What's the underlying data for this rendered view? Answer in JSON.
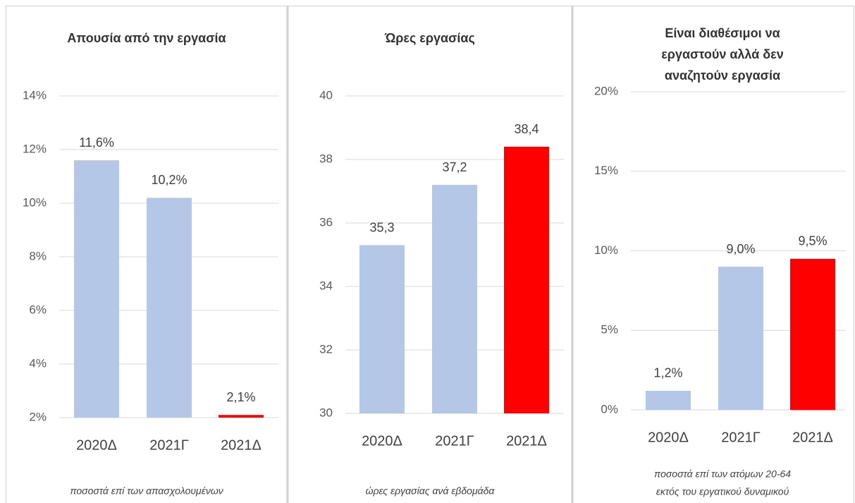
{
  "chart_data": [
    {
      "type": "bar",
      "title": "Απουσία από την εργασία",
      "categories": [
        "2020Δ",
        "2021Γ",
        "2021Δ"
      ],
      "values": [
        11.6,
        10.2,
        2.1
      ],
      "value_labels": [
        "11,6%",
        "10,2%",
        "2,1%"
      ],
      "colors": [
        "#b4c7e7",
        "#b4c7e7",
        "#ff0000"
      ],
      "ylim": [
        2,
        14
      ],
      "yticks": [
        {
          "value": 2,
          "label": "2%"
        },
        {
          "value": 4,
          "label": "4%"
        },
        {
          "value": 6,
          "label": "6%"
        },
        {
          "value": 8,
          "label": "8%"
        },
        {
          "value": 10,
          "label": "10%"
        },
        {
          "value": 12,
          "label": "12%"
        },
        {
          "value": 14,
          "label": "14%"
        }
      ],
      "grid": true,
      "note": "ποσοστά επί των  απασχολουμένων"
    },
    {
      "type": "bar",
      "title": "Ώρες εργασίας",
      "categories": [
        "2020Δ",
        "2021Γ",
        "2021Δ"
      ],
      "values": [
        35.3,
        37.2,
        38.4
      ],
      "value_labels": [
        "35,3",
        "37,2",
        "38,4"
      ],
      "colors": [
        "#b4c7e7",
        "#b4c7e7",
        "#ff0000"
      ],
      "ylim": [
        30,
        40
      ],
      "yticks": [
        30,
        32,
        34,
        36,
        38,
        40
      ],
      "grid": true,
      "note": "ώρες εργασίας ανά εβδομάδα"
    },
    {
      "type": "bar",
      "title": [
        "Είναι διαθέσιμοι να",
        "εργαστούν αλλά δεν",
        "αναζητούν εργασία"
      ],
      "categories": [
        "2020Δ",
        "2021Γ",
        "2021Δ"
      ],
      "values": [
        1.2,
        9.0,
        9.5
      ],
      "value_labels": [
        "1,2%",
        "9,0%",
        "9,5%"
      ],
      "colors": [
        "#b4c7e7",
        "#b4c7e7",
        "#ff0000"
      ],
      "ylim": [
        0,
        20
      ],
      "yticks": [
        {
          "value": 0,
          "label": "0%"
        },
        {
          "value": 5,
          "label": "5%"
        },
        {
          "value": 10,
          "label": "10%"
        },
        {
          "value": 15,
          "label": "15%"
        },
        {
          "value": 20,
          "label": "20%"
        }
      ],
      "grid": true,
      "note": [
        "ποσοστά επί των ατόμων 20-64",
        "εκτός του εργατικού δυναμικού"
      ]
    }
  ]
}
